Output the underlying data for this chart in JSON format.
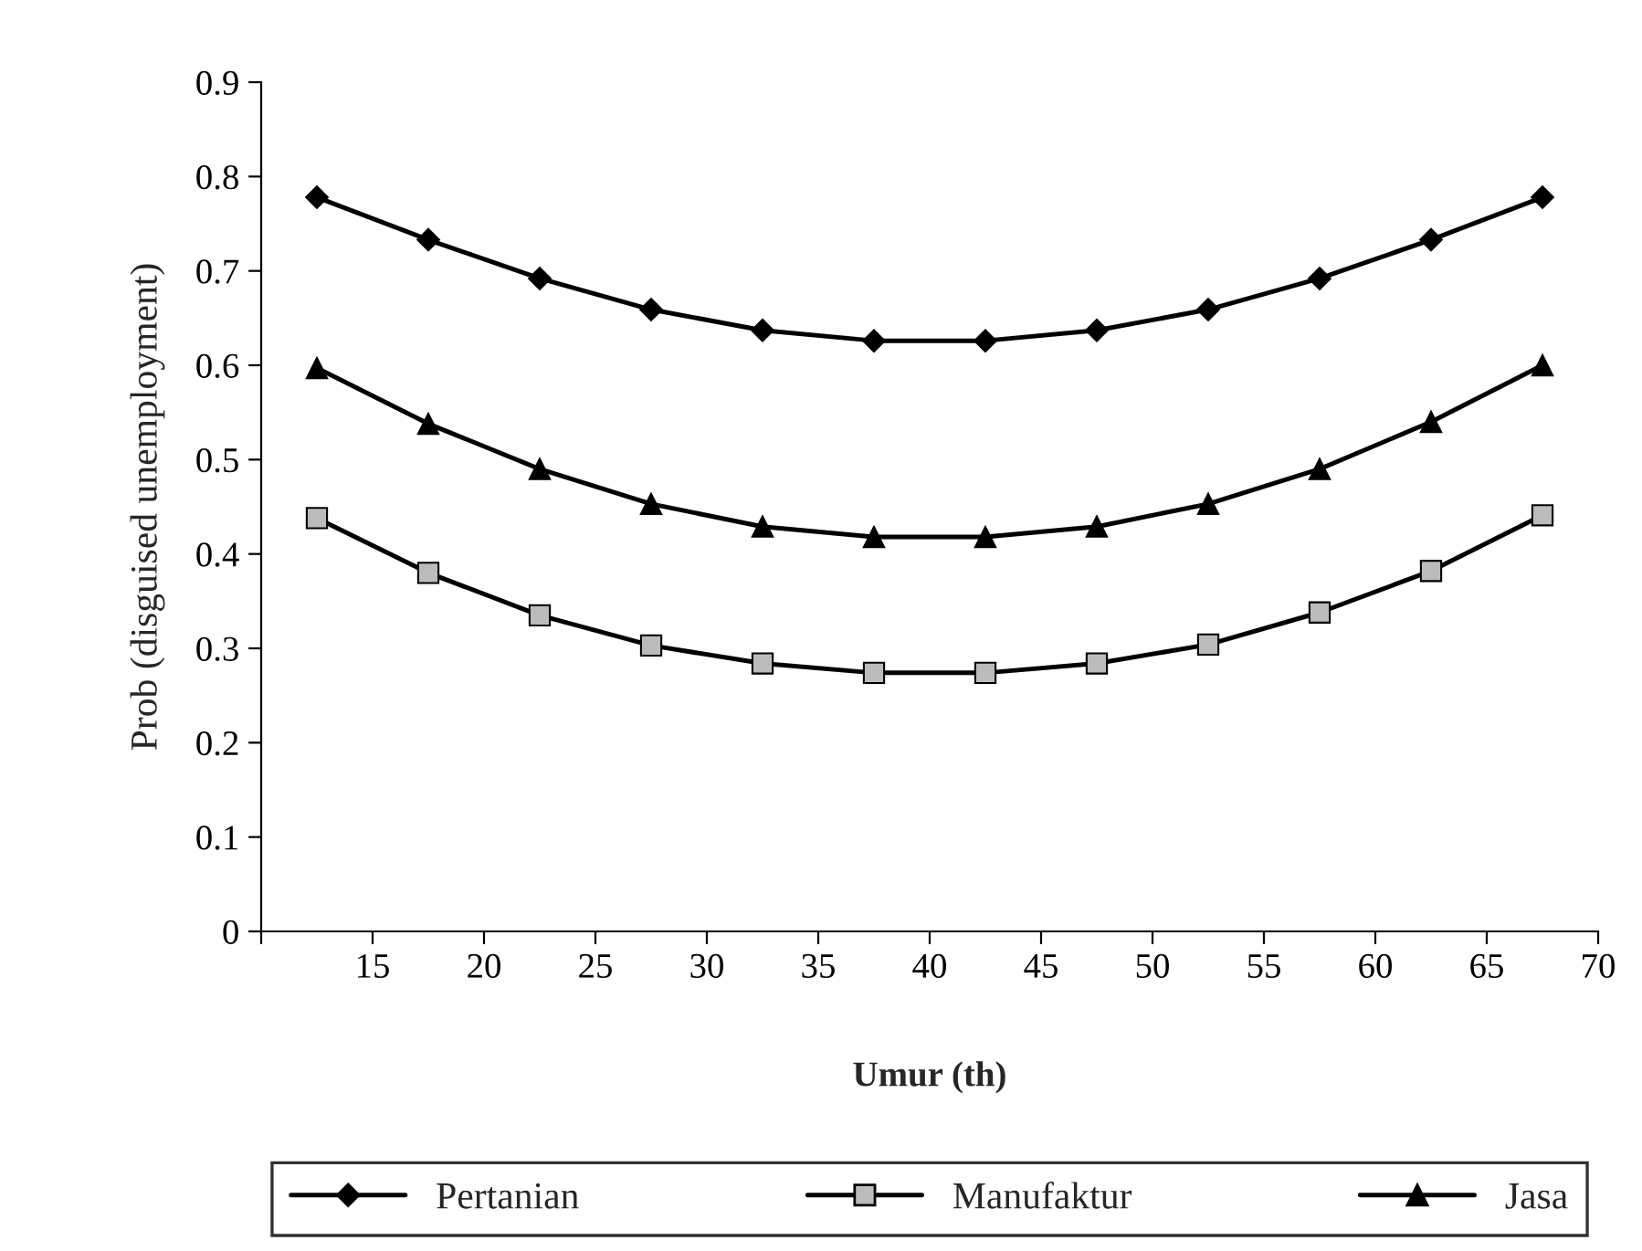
{
  "chart_data": {
    "type": "line",
    "xlabel": "Umur (th)",
    "ylabel": "Prob (disguised unemployment)",
    "x": [
      12.5,
      17.5,
      22.5,
      27.5,
      32.5,
      37.5,
      42.5,
      47.5,
      52.5,
      57.5,
      62.5,
      67.5
    ],
    "series": [
      {
        "name": "Pertanian",
        "color": "#000000",
        "marker": "diamond",
        "values": [
          0.778,
          0.733,
          0.692,
          0.659,
          0.637,
          0.626,
          0.626,
          0.637,
          0.659,
          0.692,
          0.733,
          0.778
        ]
      },
      {
        "name": "Manufaktur",
        "color": "#000000",
        "marker": "square",
        "values": [
          0.438,
          0.38,
          0.335,
          0.303,
          0.284,
          0.274,
          0.274,
          0.284,
          0.304,
          0.338,
          0.382,
          0.441
        ]
      },
      {
        "name": "Jasa",
        "color": "#000000",
        "marker": "triangle",
        "values": [
          0.597,
          0.538,
          0.49,
          0.453,
          0.429,
          0.418,
          0.418,
          0.429,
          0.453,
          0.49,
          0.54,
          0.6
        ]
      }
    ],
    "xlim": [
      10,
      70
    ],
    "xticks": [
      {
        "value": 10,
        "label": null
      },
      15,
      20,
      25,
      30,
      35,
      40,
      45,
      50,
      55,
      60,
      65,
      70
    ],
    "ylim": [
      0,
      0.9
    ],
    "yticks": [
      0,
      0.1,
      0.2,
      0.3,
      0.4,
      0.5,
      0.6,
      0.7,
      0.8,
      0.9
    ],
    "grid": false,
    "legend": "bottom",
    "line_style": "solid"
  }
}
